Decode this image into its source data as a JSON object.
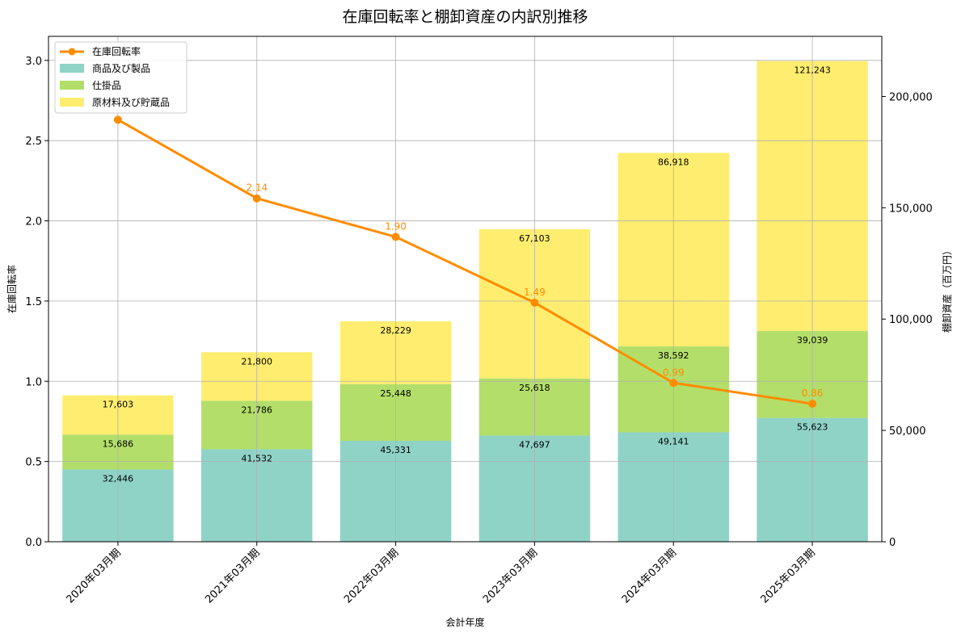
{
  "chart_data": {
    "type": "bar",
    "title": "在庫回転率と棚卸資産の内訳別推移",
    "xlabel": "会計年度",
    "ylabel_left": "在庫回転率",
    "ylabel_right": "棚卸資産（百万円）",
    "categories": [
      "2020年03月期",
      "2021年03月期",
      "2022年03月期",
      "2023年03月期",
      "2024年03月期",
      "2025年03月期"
    ],
    "stacked": true,
    "series": [
      {
        "name": "商品及び製品",
        "type": "bar",
        "axis": "right",
        "color": "#8fd3c7",
        "values": [
          32446,
          41532,
          45331,
          47697,
          49141,
          55623
        ],
        "labels": [
          "32,446",
          "41,532",
          "45,331",
          "47,697",
          "49,141",
          "55,623"
        ]
      },
      {
        "name": "仕掛品",
        "type": "bar",
        "axis": "right",
        "color": "#b3de6a",
        "values": [
          15686,
          21786,
          25448,
          25618,
          38592,
          39039
        ],
        "labels": [
          "15,686",
          "21,786",
          "25,448",
          "25,618",
          "38,592",
          "39,039"
        ]
      },
      {
        "name": "原材料及び貯蔵品",
        "type": "bar",
        "axis": "right",
        "color": "#ffed6f",
        "values": [
          17603,
          21800,
          28229,
          67103,
          86918,
          121243
        ],
        "labels": [
          "17,603",
          "21,800",
          "28,229",
          "67,103",
          "86,918",
          "121,243"
        ]
      },
      {
        "name": "在庫回転率",
        "type": "line",
        "axis": "left",
        "color": "#ff8c00",
        "values": [
          2.63,
          2.14,
          1.9,
          1.49,
          0.99,
          0.86
        ],
        "labels": [
          "",
          "2.14",
          "1.90",
          "1.49",
          "0.99",
          "0.86"
        ]
      }
    ],
    "y_left": {
      "range": [
        0,
        3.15
      ],
      "ticks": [
        0,
        0.5,
        1.0,
        1.5,
        2.0,
        2.5,
        3.0
      ],
      "tick_labels": [
        "0.0",
        "0.5",
        "1.0",
        "1.5",
        "2.0",
        "2.5",
        "3.0"
      ]
    },
    "y_right": {
      "range": [
        0,
        227000
      ],
      "ticks": [
        0,
        50000,
        100000,
        150000,
        200000
      ],
      "tick_labels": [
        "0",
        "50,000",
        "100,000",
        "150,000",
        "200,000"
      ]
    },
    "grid": true,
    "legend_position": "top-left"
  }
}
